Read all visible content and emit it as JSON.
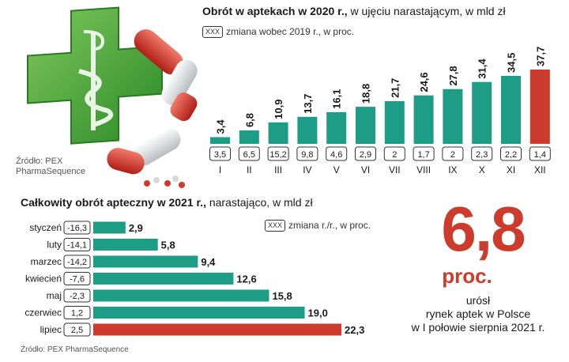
{
  "top_chart": {
    "title_bold": "Obrót w aptekach w 2020 r.,",
    "title_rest": " w ujęciu narastającym, w mld zł",
    "legend_box": "XXX",
    "legend_text": "zmiana wobec 2019 r., w proc.",
    "source_line1": "Źródło: PEX",
    "source_line2": "PharmaSequence"
  },
  "bottom_chart": {
    "title_bold": "Całkowity obrót apteczny w 2021 r.,",
    "title_rest": " narastająco, w mld zł",
    "legend_box": "XXX",
    "legend_text": "zmiana r./r., w proc.",
    "source": "Źródło: PEX PharmaSequence"
  },
  "highlight": {
    "number": "6,8",
    "unit": "proc.",
    "caption_line1": "urósł",
    "caption_line2": "rynek aptek w Polsce",
    "caption_line3": "w I połowie sierpnia 2021 r."
  },
  "colors": {
    "teal": "#1d9d86",
    "red": "#cc3b2b",
    "cross_green": "#3fa535"
  },
  "chart_data": [
    {
      "type": "bar",
      "orientation": "vertical",
      "title": "Obrót w aptekach w 2020 r., w ujęciu narastającym, w mld zł",
      "categories": [
        "I",
        "II",
        "III",
        "IV",
        "V",
        "VI",
        "VII",
        "VIII",
        "IX",
        "X",
        "XI",
        "XII"
      ],
      "values": [
        3.4,
        6.8,
        10.9,
        13.7,
        16.1,
        18.8,
        21.7,
        24.6,
        27.8,
        31.4,
        34.5,
        37.7
      ],
      "value_labels": [
        "3,4",
        "6,8",
        "10,9",
        "13,7",
        "16,1",
        "18,8",
        "21,7",
        "24,6",
        "27,8",
        "31,4",
        "34,5",
        "37,7"
      ],
      "change_labels": [
        "3,5",
        "6,5",
        "15,2",
        "9,8",
        "4,6",
        "2,9",
        "2",
        "1,7",
        "2",
        "2,3",
        "2,2",
        "1,4"
      ],
      "highlight_index": 11,
      "ylim": [
        0,
        40
      ]
    },
    {
      "type": "bar",
      "orientation": "horizontal",
      "title": "Całkowity obrót apteczny w 2021 r., narastająco, w mld zł",
      "categories": [
        "styczeń",
        "luty",
        "marzec",
        "kwiecień",
        "maj",
        "czerwiec",
        "lipiec"
      ],
      "values": [
        2.9,
        5.8,
        9.4,
        12.6,
        15.8,
        19.0,
        22.3
      ],
      "value_labels": [
        "2,9",
        "5,8",
        "9,4",
        "12,6",
        "15,8",
        "19,0",
        "22,3"
      ],
      "change_labels": [
        "-16,3",
        "-14,1",
        "-14,2",
        "-7,6",
        "-2,3",
        "1,2",
        "2,5"
      ],
      "highlight_index": 6,
      "xlim": [
        0,
        22.3
      ]
    }
  ]
}
